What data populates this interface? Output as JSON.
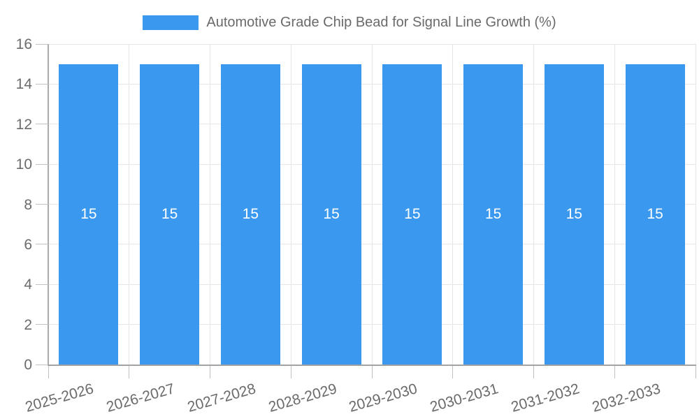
{
  "legend": {
    "label": "Automotive Grade Chip Bead for Signal Line Growth (%)"
  },
  "chart_data": {
    "type": "bar",
    "title": "Automotive Grade Chip Bead for Signal Line Growth (%)",
    "categories": [
      "2025-2026",
      "2026-2027",
      "2027-2028",
      "2028-2029",
      "2029-2030",
      "2030-2031",
      "2031-2032",
      "2032-2033"
    ],
    "values": [
      15,
      15,
      15,
      15,
      15,
      15,
      15,
      15
    ],
    "bar_value_labels": [
      "15",
      "15",
      "15",
      "15",
      "15",
      "15",
      "15",
      "15"
    ],
    "xlabel": "",
    "ylabel": "",
    "ylim": [
      0,
      16
    ],
    "ytick_step": 2,
    "ytick_labels": [
      "0",
      "2",
      "4",
      "6",
      "8",
      "10",
      "12",
      "14",
      "16"
    ],
    "grid": true,
    "legend_position": "top",
    "colors": {
      "bar": "#3a99ee",
      "grid": "#e6e6e6",
      "axis": "#a3a3a3",
      "tick": "#c2c2c2",
      "text": "#6b6b6b",
      "bar_label": "#ffffff",
      "background": "#ffffff"
    }
  }
}
